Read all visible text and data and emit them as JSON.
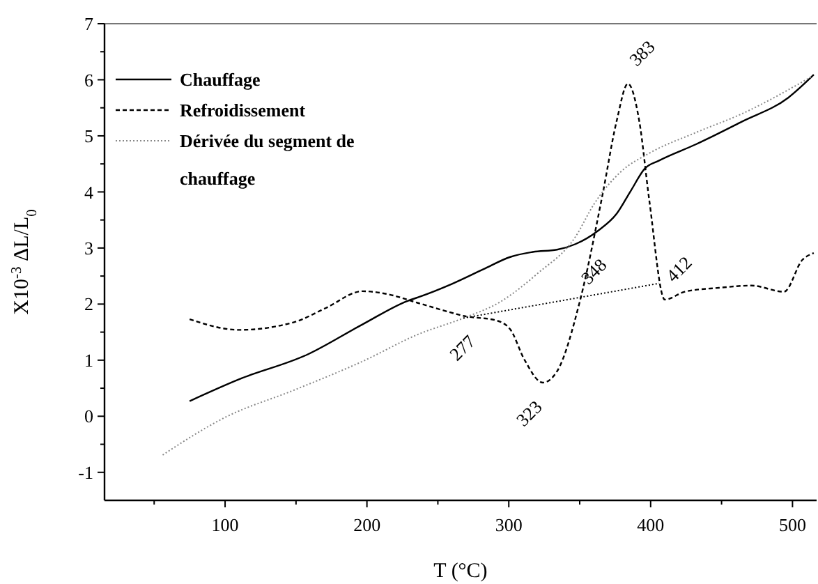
{
  "chart_data": {
    "type": "line",
    "xlabel": "T (°C)",
    "ylabel": "X10$^{-3}$ ΔL/L$_{0}$",
    "xlim": [
      15,
      517
    ],
    "xticks": [
      100,
      200,
      300,
      400,
      500
    ],
    "ylim": [
      -1.5,
      7
    ],
    "yticks": [
      -1,
      0,
      1,
      2,
      3,
      4,
      5,
      6,
      7
    ],
    "legend": "top left",
    "grid": false,
    "marker": "none",
    "series": [
      {
        "name": "Chauffage",
        "color": "#000000",
        "line_style": "solid",
        "x": [
          75,
          110,
          158,
          197,
          229,
          236,
          260,
          282,
          301,
          317,
          334,
          347,
          363,
          376,
          386,
          396,
          406,
          432,
          464,
          497,
          515
        ],
        "values": [
          0.27,
          0.66,
          1.1,
          1.64,
          2.06,
          2.12,
          2.36,
          2.62,
          2.84,
          2.93,
          2.97,
          3.07,
          3.31,
          3.61,
          4.02,
          4.42,
          4.56,
          4.85,
          5.25,
          5.68,
          6.09
        ]
      },
      {
        "name": "Refroidissement",
        "color": "#000000",
        "line_style": "dashed",
        "x": [
          75,
          110,
          149,
          171,
          197,
          214,
          236,
          262,
          268,
          291,
          301,
          311,
          324,
          334,
          350,
          366,
          376,
          384,
          392,
          399,
          410,
          424,
          448,
          471,
          494,
          507,
          515
        ],
        "values": [
          1.73,
          1.54,
          1.68,
          1.93,
          2.23,
          2.18,
          2.02,
          1.83,
          1.79,
          1.71,
          1.55,
          1.01,
          0.6,
          0.8,
          2.04,
          3.94,
          5.26,
          5.93,
          5.26,
          3.86,
          2.08,
          2.22,
          2.29,
          2.33,
          2.22,
          2.79,
          2.91
        ]
      },
      {
        "name": "Dérivée du segment de chauffage",
        "color": "#888888",
        "line_style": "dotted",
        "x": [
          56,
          100,
          149,
          197,
          236,
          268,
          294,
          320,
          347,
          360,
          379,
          399,
          432,
          464,
          513
        ],
        "values": [
          -0.69,
          -0.02,
          0.47,
          0.98,
          1.46,
          1.75,
          2.04,
          2.54,
          3.2,
          3.78,
          4.36,
          4.69,
          5.06,
          5.39,
          6.05
        ]
      },
      {
        "color": "#000000",
        "line_style": "dotted",
        "x": [
          268,
          406
        ],
        "values": [
          1.75,
          2.37
        ]
      }
    ],
    "annotations": [
      {
        "text": "277",
        "x": 277,
        "y": 1.77
      },
      {
        "text": "323",
        "x": 324,
        "y": 0.6
      },
      {
        "text": "348",
        "x": 350,
        "y": 2.04
      },
      {
        "text": "383",
        "x": 384,
        "y": 5.93
      },
      {
        "text": "412",
        "x": 410,
        "y": 2.08
      }
    ]
  }
}
